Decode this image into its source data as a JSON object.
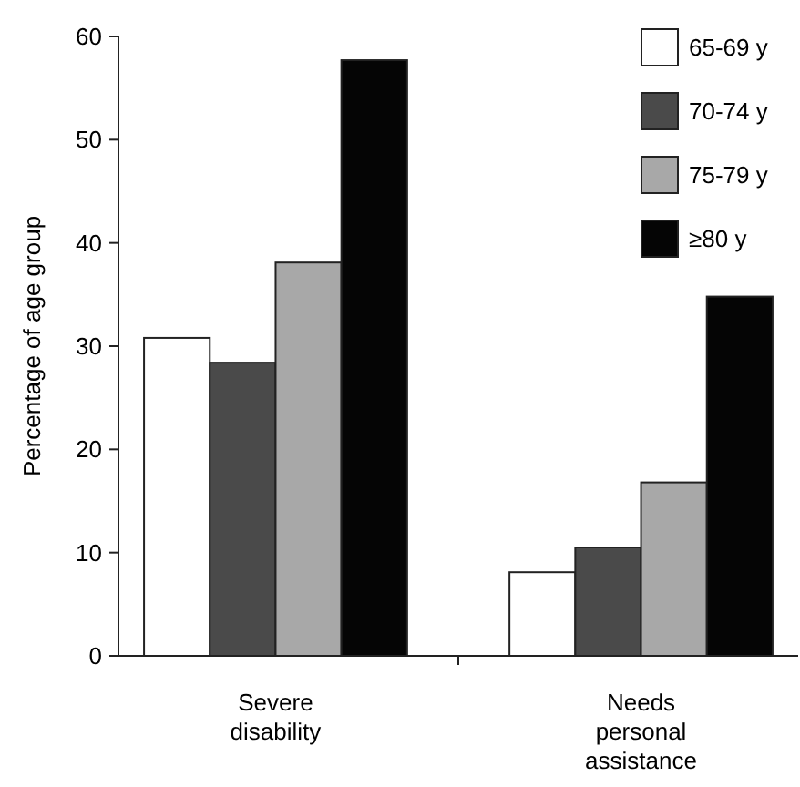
{
  "chart_data": {
    "type": "bar",
    "ylabel": "Percentage of age group",
    "categories": [
      "Severe disability",
      "Needs personal assistance"
    ],
    "series": [
      {
        "name": "65-69 y",
        "color": "#ffffff",
        "values": [
          30.8,
          8.1
        ]
      },
      {
        "name": "70-74 y",
        "color": "#4a4a4a",
        "values": [
          28.4,
          10.5
        ]
      },
      {
        "name": "75-79 y",
        "color": "#a8a8a8",
        "values": [
          38.1,
          16.8
        ]
      },
      {
        "name": "≥80 y",
        "color": "#050505",
        "values": [
          57.7,
          34.8
        ]
      }
    ],
    "ylim": [
      0,
      60
    ],
    "yticks": [
      0,
      10,
      20,
      30,
      40,
      50,
      60
    ],
    "legend": "top right"
  }
}
